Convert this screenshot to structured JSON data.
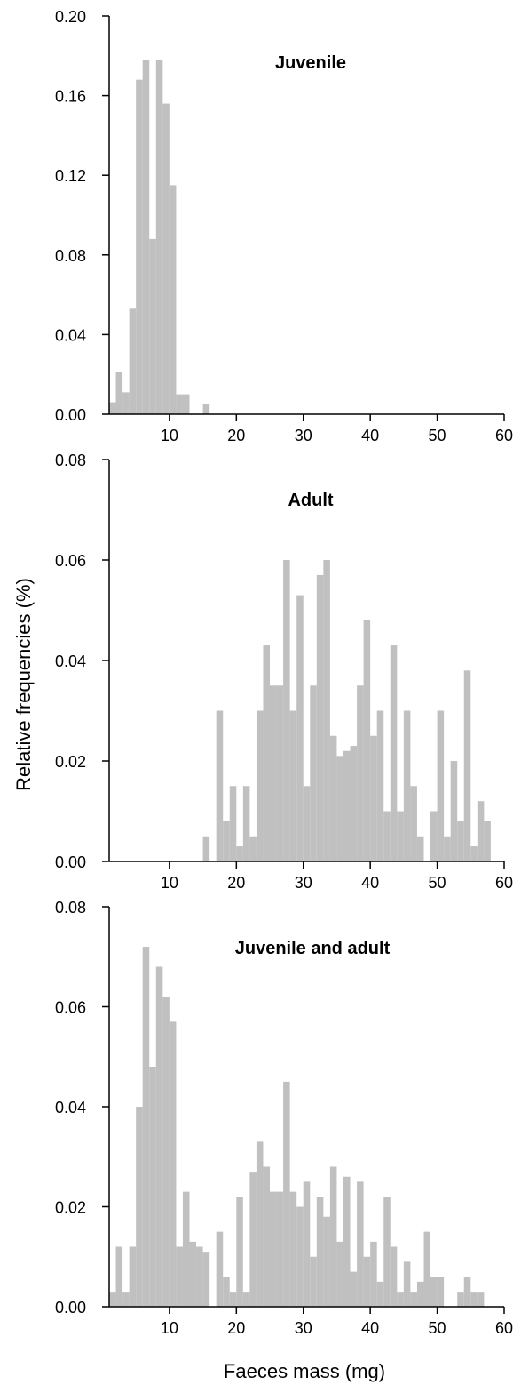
{
  "figure": {
    "ylabel": "Relative frequencies (%)",
    "xlabel": "Faeces mass (mg)"
  },
  "colors": {
    "bar": "#c0c0c0",
    "axis": "#000000"
  },
  "chart_data": [
    {
      "type": "bar",
      "title": "Juvenile",
      "xlabel": "",
      "ylabel": "",
      "xlim": [
        1,
        60
      ],
      "ylim": [
        0,
        0.2
      ],
      "xticks": [
        10,
        20,
        30,
        40,
        50,
        60
      ],
      "yticks": [
        "0.00",
        "0.04",
        "0.08",
        "0.12",
        "0.16",
        "0.20"
      ],
      "bin_width": 1,
      "bin_starts": [
        1,
        2,
        3,
        4,
        5,
        6,
        7,
        8,
        9,
        10,
        11,
        12,
        13,
        14,
        15
      ],
      "values": [
        0.006,
        0.021,
        0.011,
        0.053,
        0.168,
        0.178,
        0.088,
        0.178,
        0.156,
        0.115,
        0.01,
        0.01,
        0,
        0,
        0.005
      ],
      "grid": false
    },
    {
      "type": "bar",
      "title": "Adult",
      "xlabel": "",
      "ylabel": "",
      "xlim": [
        1,
        60
      ],
      "ylim": [
        0,
        0.08
      ],
      "xticks": [
        10,
        20,
        30,
        40,
        50,
        60
      ],
      "yticks": [
        "0.00",
        "0.02",
        "0.04",
        "0.06",
        "0.08"
      ],
      "bin_width": 1,
      "bin_starts": [
        15,
        16,
        17,
        18,
        19,
        20,
        21,
        22,
        23,
        24,
        25,
        26,
        27,
        28,
        29,
        30,
        31,
        32,
        33,
        34,
        35,
        36,
        37,
        38,
        39,
        40,
        41,
        42,
        43,
        44,
        45,
        46,
        47,
        48,
        49,
        50,
        51,
        52,
        53,
        54,
        55,
        56,
        57
      ],
      "values": [
        0.005,
        0,
        0.03,
        0.008,
        0.015,
        0.003,
        0.015,
        0.005,
        0.03,
        0.043,
        0.035,
        0.035,
        0.06,
        0.03,
        0.053,
        0.015,
        0.035,
        0.057,
        0.06,
        0.025,
        0.021,
        0.022,
        0.023,
        0.035,
        0.048,
        0.025,
        0.03,
        0.01,
        0.043,
        0.01,
        0.03,
        0.015,
        0.005,
        0.0,
        0.01,
        0.03,
        0.005,
        0.02,
        0.008,
        0.038,
        0.003,
        0.012,
        0.008
      ],
      "grid": false
    },
    {
      "type": "bar",
      "title": "Juvenile and adult",
      "xlabel": "Faeces mass (mg)",
      "ylabel": "",
      "xlim": [
        1,
        60
      ],
      "ylim": [
        0,
        0.08
      ],
      "xticks": [
        10,
        20,
        30,
        40,
        50,
        60
      ],
      "yticks": [
        "0.00",
        "0.02",
        "0.04",
        "0.06",
        "0.08"
      ],
      "bin_width": 1,
      "bin_starts": [
        1,
        2,
        3,
        4,
        5,
        6,
        7,
        8,
        9,
        10,
        11,
        12,
        13,
        14,
        15,
        16,
        17,
        18,
        19,
        20,
        21,
        22,
        23,
        24,
        25,
        26,
        27,
        28,
        29,
        30,
        31,
        32,
        33,
        34,
        35,
        36,
        37,
        38,
        39,
        40,
        41,
        42,
        43,
        44,
        45,
        46,
        47,
        48,
        49,
        50,
        51,
        52,
        53,
        54,
        55,
        56
      ],
      "values": [
        0.003,
        0.012,
        0.003,
        0.012,
        0.04,
        0.072,
        0.048,
        0.068,
        0.062,
        0.057,
        0.012,
        0.023,
        0.013,
        0.012,
        0.011,
        0,
        0.015,
        0.006,
        0.003,
        0.022,
        0.003,
        0.027,
        0.033,
        0.028,
        0.023,
        0.023,
        0.045,
        0.023,
        0.02,
        0.025,
        0.01,
        0.022,
        0.018,
        0.028,
        0.013,
        0.026,
        0.007,
        0.025,
        0.01,
        0.013,
        0.005,
        0.022,
        0.012,
        0.003,
        0.009,
        0.003,
        0.005,
        0.015,
        0.006,
        0.006,
        0,
        0,
        0.003,
        0.006,
        0.003,
        0.003
      ],
      "grid": false
    }
  ]
}
